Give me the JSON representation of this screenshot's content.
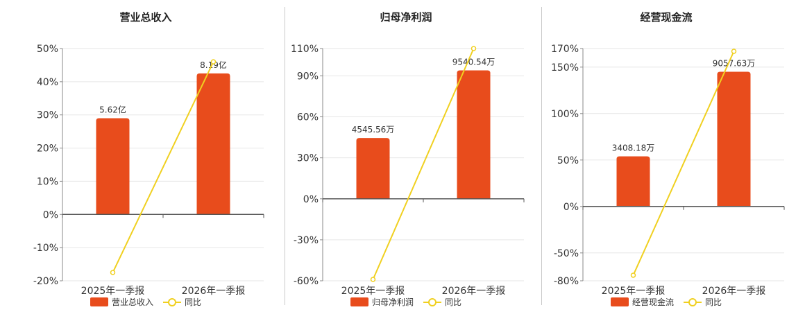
{
  "colors": {
    "bar": "#e84c1c",
    "line": "#f0d020",
    "axis": "#555555",
    "grid": "#e6e6e6"
  },
  "chart_data": [
    {
      "type": "bar",
      "title": "营业总收入",
      "categories": [
        "2025年一季报",
        "2026年一季报"
      ],
      "series": [
        {
          "name": "营业总收入",
          "type": "bar",
          "values": [
            29,
            42.5
          ],
          "labels": [
            "5.62亿",
            "8.19亿"
          ]
        },
        {
          "name": "同比",
          "type": "line",
          "values": [
            -17.5,
            46
          ]
        }
      ],
      "yticks": [
        -20,
        -10,
        0,
        10,
        20,
        30,
        40,
        50
      ],
      "ylim": [
        -20,
        50
      ],
      "tick_suffix": "%",
      "grid": true,
      "legend_position": "bottom"
    },
    {
      "type": "bar",
      "title": "归母净利润",
      "categories": [
        "2025年一季报",
        "2026年一季报"
      ],
      "series": [
        {
          "name": "归母净利润",
          "type": "bar",
          "values": [
            44.5,
            94
          ],
          "labels": [
            "4545.56万",
            "9540.54万"
          ]
        },
        {
          "name": "同比",
          "type": "line",
          "values": [
            -59,
            110
          ]
        }
      ],
      "yticks": [
        -60,
        -30,
        0,
        30,
        60,
        90,
        110
      ],
      "ylim": [
        -60,
        110
      ],
      "tick_suffix": "%",
      "grid": true,
      "legend_position": "bottom"
    },
    {
      "type": "bar",
      "title": "经营现金流",
      "categories": [
        "2025年一季报",
        "2026年一季报"
      ],
      "series": [
        {
          "name": "经营现金流",
          "type": "bar",
          "values": [
            54,
            145
          ],
          "labels": [
            "3408.18万",
            "9057.63万"
          ]
        },
        {
          "name": "同比",
          "type": "line",
          "values": [
            -74,
            167
          ]
        }
      ],
      "yticks": [
        -80,
        -50,
        0,
        50,
        100,
        150,
        170
      ],
      "ylim": [
        -80,
        170
      ],
      "tick_suffix": "%",
      "grid": true,
      "legend_position": "bottom"
    }
  ]
}
